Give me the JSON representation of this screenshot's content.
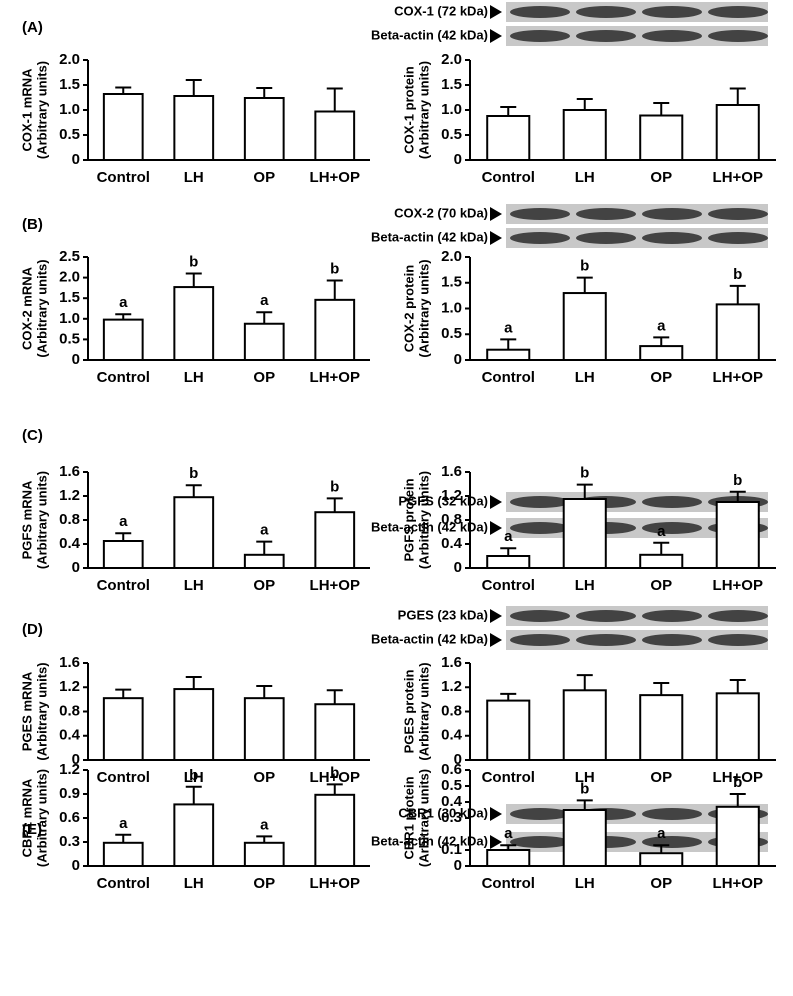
{
  "chart_data": [
    {
      "type": "bar",
      "panel": "(A)",
      "ylabel": [
        "COX-1 mRNA",
        "(Arbitrary units)"
      ],
      "categories": [
        "Control",
        "LH",
        "OP",
        "LH+OP"
      ],
      "values": [
        1.32,
        1.28,
        1.24,
        0.97
      ],
      "errors": [
        0.13,
        0.32,
        0.2,
        0.46
      ],
      "color": "#ffffff",
      "ylim": [
        0,
        2
      ],
      "yticks": [
        0,
        0.5,
        {
          "value": 1,
          "label": "1.0"
        },
        1.5,
        {
          "value": 2,
          "label": "2.0"
        }
      ]
    },
    {
      "type": "bar",
      "blots": [
        "COX-1 (72 kDa)",
        "Beta-actin (42 kDa)"
      ],
      "ylabel": [
        "COX-1 protein",
        "(Arbitrary units)"
      ],
      "categories": [
        "Control",
        "LH",
        "OP",
        "LH+OP"
      ],
      "values": [
        0.88,
        1.0,
        0.89,
        1.1
      ],
      "errors": [
        0.18,
        0.22,
        0.25,
        0.33
      ],
      "color": "#ffffff",
      "ylim": [
        0,
        2
      ],
      "yticks": [
        0,
        0.5,
        {
          "value": 1,
          "label": "1.0"
        },
        1.5,
        {
          "value": 2,
          "label": "2.0"
        }
      ]
    },
    {
      "type": "bar",
      "panel": "(B)",
      "ylabel": [
        "COX-2 mRNA",
        "(Arbitrary units)"
      ],
      "categories": [
        "Control",
        "LH",
        "OP",
        "LH+OP"
      ],
      "values": [
        0.98,
        1.77,
        0.88,
        1.46
      ],
      "errors": [
        0.13,
        0.33,
        0.28,
        0.47
      ],
      "letters": [
        "a",
        "b",
        "a",
        "b"
      ],
      "color": "#ffffff",
      "ylim": [
        0,
        2.5
      ],
      "yticks": [
        0,
        0.5,
        {
          "value": 1,
          "label": "1.0"
        },
        1.5,
        {
          "value": 2,
          "label": "2.0"
        },
        2.5
      ]
    },
    {
      "type": "bar",
      "blots": [
        "COX-2 (70 kDa)",
        "Beta-actin (42 kDa)"
      ],
      "ylabel": [
        "COX-2 protein",
        "(Arbitrary units)"
      ],
      "categories": [
        "Control",
        "LH",
        "OP",
        "LH+OP"
      ],
      "values": [
        0.2,
        1.3,
        0.27,
        1.08
      ],
      "errors": [
        0.2,
        0.3,
        0.17,
        0.36
      ],
      "letters": [
        "a",
        "b",
        "a",
        "b"
      ],
      "color": "#ffffff",
      "ylim": [
        0,
        2
      ],
      "yticks": [
        0,
        0.5,
        {
          "value": 1,
          "label": "1.0"
        },
        1.5,
        {
          "value": 2,
          "label": "2.0"
        }
      ]
    },
    {
      "type": "bar",
      "panel": "(C)",
      "ylabel": [
        "PGFS mRNA",
        "(Arbitrary units)"
      ],
      "categories": [
        "Control",
        "LH",
        "OP",
        "LH+OP"
      ],
      "values": [
        0.45,
        1.18,
        0.22,
        0.93
      ],
      "errors": [
        0.13,
        0.2,
        0.22,
        0.23
      ],
      "letters": [
        "a",
        "b",
        "a",
        "b"
      ],
      "color": "#ffffff",
      "ylim": [
        0,
        1.6
      ],
      "yticks": [
        0,
        0.4,
        0.8,
        1.2,
        1.6
      ]
    },
    {
      "type": "bar",
      "blots": [
        "PGFS (32 kDa)",
        "Beta-actin (42 kDa)"
      ],
      "ylabel": [
        "PGFS protein",
        "(Arbitrary units)"
      ],
      "categories": [
        "Control",
        "LH",
        "OP",
        "LH+OP"
      ],
      "values": [
        0.2,
        1.15,
        0.22,
        1.1
      ],
      "errors": [
        0.13,
        0.24,
        0.2,
        0.17
      ],
      "letters": [
        "a",
        "b",
        "a",
        "b"
      ],
      "color": "#ffffff",
      "ylim": [
        0,
        1.6
      ],
      "yticks": [
        0,
        0.4,
        0.8,
        1.2,
        1.6
      ]
    },
    {
      "type": "bar",
      "panel": "(D)",
      "ylabel": [
        "PGES mRNA",
        "(Arbitrary units)"
      ],
      "categories": [
        "Control",
        "LH",
        "OP",
        "LH+OP"
      ],
      "values": [
        1.02,
        1.17,
        1.02,
        0.92
      ],
      "errors": [
        0.14,
        0.2,
        0.2,
        0.23
      ],
      "color": "#ffffff",
      "ylim": [
        0,
        1.6
      ],
      "yticks": [
        0,
        0.4,
        0.8,
        1.2,
        1.6
      ]
    },
    {
      "type": "bar",
      "blots": [
        "PGES (23 kDa)",
        "Beta-actin (42 kDa)"
      ],
      "ylabel": [
        "PGES protein",
        "(Arbitrary units)"
      ],
      "categories": [
        "Control",
        "LH",
        "OP",
        "LH+OP"
      ],
      "values": [
        0.98,
        1.15,
        1.07,
        1.1
      ],
      "errors": [
        0.11,
        0.25,
        0.2,
        0.22
      ],
      "color": "#ffffff",
      "ylim": [
        0,
        1.6
      ],
      "yticks": [
        0,
        0.4,
        0.8,
        1.2,
        1.6
      ]
    },
    {
      "type": "bar",
      "panel": "(E)",
      "ylabel": [
        "CBR1 mRNA",
        "(Arbitrary units)"
      ],
      "categories": [
        "Control",
        "LH",
        "OP",
        "LH+OP"
      ],
      "values": [
        0.29,
        0.77,
        0.29,
        0.89
      ],
      "errors": [
        0.1,
        0.22,
        0.08,
        0.13
      ],
      "letters": [
        "a",
        "b",
        "a",
        "b"
      ],
      "color": "#ffffff",
      "ylim": [
        0,
        1.2
      ],
      "yticks": [
        0,
        0.3,
        0.6,
        0.9,
        1.2
      ]
    },
    {
      "type": "bar",
      "blots": [
        "CBR1 (30 kDa)",
        "Beta-actin (42 kDa)"
      ],
      "ylabel": [
        "CBR1 protein",
        "(Arbitrary units)"
      ],
      "categories": [
        "Control",
        "LH",
        "OP",
        "LH+OP"
      ],
      "values": [
        0.1,
        0.35,
        0.08,
        0.37
      ],
      "errors": [
        0.03,
        0.06,
        0.05,
        0.08
      ],
      "letters": [
        "a",
        "b",
        "a",
        "b"
      ],
      "color": "#ffffff",
      "ylim": [
        0,
        0.6
      ],
      "yticks": [
        0,
        0.1,
        0.3,
        0.4,
        0.5,
        0.6
      ]
    }
  ]
}
